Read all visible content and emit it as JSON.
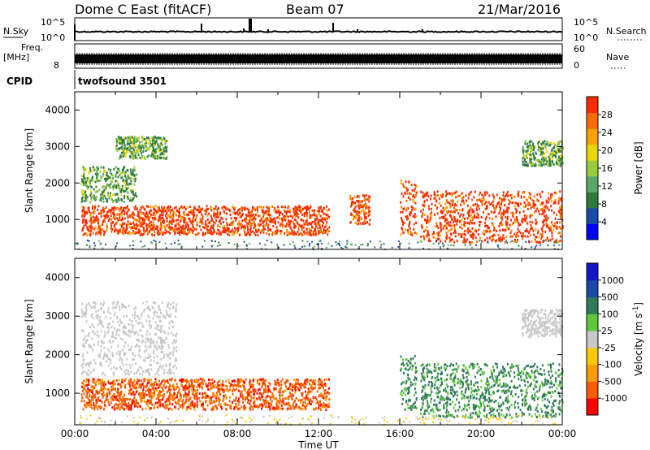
{
  "header": {
    "station": "Dome C East (fitACF)",
    "beam": "Beam 07",
    "date": "21/Mar/2016"
  },
  "panels": {
    "nsky_label": "N.Sky",
    "nsky_ticks": [
      "10^5",
      "10^0"
    ],
    "nsearch_label": "N.Search",
    "nsearch_ticks": [
      "10^5",
      "10^0"
    ],
    "freq_label": "Freq.",
    "freq_unit": "[MHz]",
    "freq_ticks": [
      "8"
    ],
    "nave_label": "Nave",
    "nave_ticks": [
      "60",
      "0"
    ],
    "cpid_label": "CPID",
    "cpid_value": "twofsound 3501"
  },
  "chart_data": [
    {
      "type": "heatmap",
      "name": "power",
      "ylabel": "Slant Range [km]",
      "yticks": [
        "4000",
        "3000",
        "2000",
        "1000"
      ],
      "ylim": [
        180,
        4500
      ],
      "xlim_hours": [
        0,
        24
      ],
      "colorbar": {
        "label": "Power [dB]",
        "ticks": [
          "28",
          "24",
          "20",
          "16",
          "12",
          "8",
          "4"
        ],
        "colors": [
          "#0000ff",
          "#1a4aa8",
          "#2f7a3a",
          "#5aa865",
          "#9ccc3c",
          "#e8d800",
          "#ffa000",
          "#ff6a00",
          "#ff2a00"
        ]
      },
      "features": [
        {
          "hours": [
            0.3,
            3.0
          ],
          "range_km": [
            1500,
            2500
          ],
          "level": "10-18 dB"
        },
        {
          "hours": [
            2.0,
            4.5
          ],
          "range_km": [
            2700,
            3300
          ],
          "level": "10-18 dB"
        },
        {
          "hours": [
            0.3,
            12.5
          ],
          "range_km": [
            600,
            1400
          ],
          "level": "up to 28+ dB"
        },
        {
          "hours": [
            13.5,
            14.5
          ],
          "range_km": [
            900,
            1700
          ],
          "level": "20-28 dB"
        },
        {
          "hours": [
            16.0,
            16.8
          ],
          "range_km": [
            600,
            2100
          ],
          "level": "24-28+ dB"
        },
        {
          "hours": [
            17.0,
            24.0
          ],
          "range_km": [
            400,
            1800
          ],
          "level": "12-28+ dB"
        },
        {
          "hours": [
            22.0,
            24.0
          ],
          "range_km": [
            2500,
            3200
          ],
          "level": "12-20 dB"
        }
      ]
    },
    {
      "type": "heatmap",
      "name": "velocity",
      "ylabel": "Slant Range [km]",
      "yticks": [
        "4000",
        "3000",
        "2000",
        "1000"
      ],
      "ylim": [
        180,
        4500
      ],
      "xlim_hours": [
        0,
        24
      ],
      "xticks": [
        "00:00",
        "04:00",
        "08:00",
        "12:00",
        "16:00",
        "20:00",
        "00:00"
      ],
      "xlabel": "Time UT",
      "colorbar": {
        "label": "Velocity [m s",
        "label_exp": "-1",
        "label_end": "]",
        "ticks": [
          "1000",
          "500",
          "100",
          "25",
          "-25",
          "-100",
          "-500",
          "-1000"
        ],
        "colors": [
          "#ff0000",
          "#ff5a00",
          "#ff9a00",
          "#ffc800",
          "#c8c8c8",
          "#5cc83a",
          "#2f7a5a",
          "#1a4aa8",
          "#1414c8"
        ]
      },
      "features": [
        {
          "hours": [
            0.3,
            5.0
          ],
          "range_km": [
            1500,
            3400
          ],
          "level": "-25 to 25 m/s"
        },
        {
          "hours": [
            0.3,
            12.5
          ],
          "range_km": [
            600,
            1400
          ],
          "level": "-100 to -500 m/s"
        },
        {
          "hours": [
            16.0,
            16.8
          ],
          "range_km": [
            600,
            2000
          ],
          "level": "100 to 500 m/s"
        },
        {
          "hours": [
            17.0,
            24.0
          ],
          "range_km": [
            400,
            1800
          ],
          "level": "100 to 500 m/s"
        },
        {
          "hours": [
            22.0,
            24.0
          ],
          "range_km": [
            2500,
            3200
          ],
          "level": "-25 to 25 m/s"
        }
      ]
    }
  ]
}
